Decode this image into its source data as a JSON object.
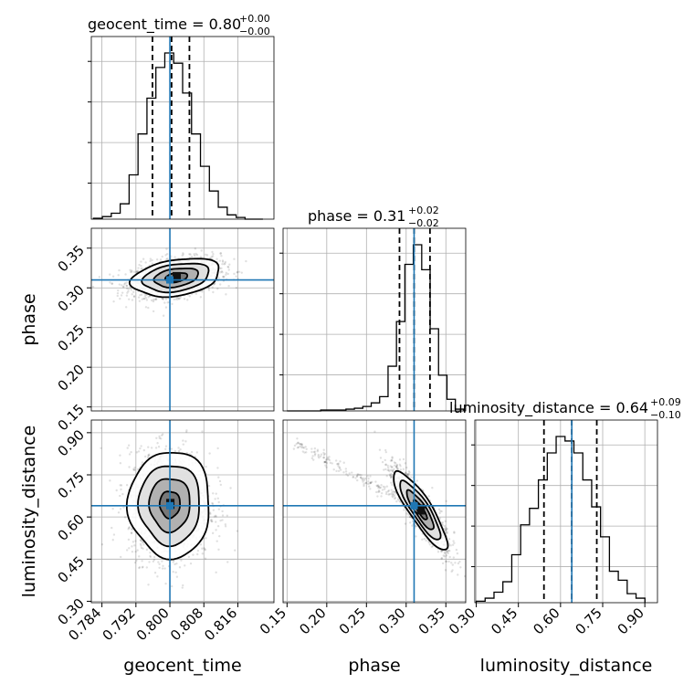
{
  "chart_data": {
    "type": "corner",
    "parameters": [
      "geocent_time",
      "phase",
      "luminosity_distance"
    ],
    "truths": {
      "geocent_time": 0.8,
      "phase": 0.31,
      "luminosity_distance": 0.64
    },
    "truth_color": "#1f77b4",
    "titles": [
      {
        "param": "geocent_time",
        "text": "geocent_time = 0.80",
        "sup": "+0.00",
        "sub": "−0.00"
      },
      {
        "param": "phase",
        "text": "phase = 0.31",
        "sup": "+0.02",
        "sub": "−0.02"
      },
      {
        "param": "luminosity_distance",
        "text": "luminosity_distance = 0.64",
        "sup": "+0.09",
        "sub": "−0.10"
      }
    ],
    "axes": {
      "geocent_time": {
        "label": "geocent_time",
        "lim": [
          0.7815,
          0.8245
        ],
        "ticks": [
          0.784,
          0.792,
          0.8,
          0.808,
          0.816
        ],
        "tick_labels": [
          "0.784",
          "0.792",
          "0.800",
          "0.808",
          "0.816"
        ]
      },
      "phase": {
        "label": "phase",
        "lim": [
          0.145,
          0.375
        ],
        "ticks": [
          0.15,
          0.2,
          0.25,
          0.3,
          0.35
        ],
        "tick_labels": [
          "0.15",
          "0.20",
          "0.25",
          "0.30",
          "0.35"
        ]
      },
      "luminosity_distance": {
        "label": "luminosity_distance",
        "lim": [
          0.295,
          0.945
        ],
        "ticks": [
          0.3,
          0.45,
          0.6,
          0.75,
          0.9
        ],
        "tick_labels": [
          "0.30",
          "0.45",
          "0.60",
          "0.75",
          "0.90"
        ]
      }
    },
    "histograms": {
      "geocent_time": {
        "edges": [
          0.782,
          0.7841,
          0.7862,
          0.7883,
          0.7904,
          0.7925,
          0.7946,
          0.7967,
          0.7988,
          0.8009,
          0.803,
          0.8051,
          0.8072,
          0.8093,
          0.8114,
          0.8135,
          0.8156,
          0.8177,
          0.8198,
          0.8219
        ],
        "counts": [
          1,
          3,
          7,
          18,
          52,
          100,
          142,
          178,
          195,
          183,
          148,
          100,
          62,
          33,
          14,
          5,
          2,
          0,
          0
        ]
      },
      "phase": {
        "edges": [
          0.15,
          0.1606,
          0.1712,
          0.1818,
          0.1924,
          0.203,
          0.2136,
          0.2242,
          0.2348,
          0.2454,
          0.256,
          0.2666,
          0.2772,
          0.2878,
          0.2984,
          0.309,
          0.3196,
          0.3302,
          0.3408,
          0.3514,
          0.362,
          0.3726
        ],
        "counts": [
          0,
          0,
          0,
          0,
          1,
          1,
          1,
          2,
          3,
          5,
          9,
          16,
          50,
          100,
          164,
          186,
          158,
          92,
          40,
          13,
          2
        ]
      },
      "luminosity_distance": {
        "edges": [
          0.3,
          0.3316,
          0.3632,
          0.3948,
          0.4264,
          0.458,
          0.4896,
          0.5212,
          0.5528,
          0.5844,
          0.616,
          0.6476,
          0.6792,
          0.7108,
          0.7424,
          0.774,
          0.8056,
          0.8372,
          0.8688,
          0.9004
        ],
        "counts": [
          1,
          3,
          7,
          14,
          32,
          52,
          63,
          82,
          100,
          111,
          108,
          100,
          82,
          64,
          44,
          21,
          15,
          6,
          3
        ]
      }
    },
    "quantiles": {
      "geocent_time": [
        0.7959,
        0.8004,
        0.8046
      ],
      "phase": [
        0.2916,
        0.31,
        0.33
      ],
      "luminosity_distance": [
        0.541,
        0.64,
        0.729
      ]
    },
    "pairs": [
      {
        "x": "geocent_time",
        "y": "phase",
        "center": [
          0.8015,
          0.313
        ],
        "spread": [
          0.0052,
          0.012
        ],
        "rho": 0.3
      },
      {
        "x": "geocent_time",
        "y": "luminosity_distance",
        "center": [
          0.8,
          0.645
        ],
        "spread": [
          0.0048,
          0.095
        ],
        "rho": 0.0
      },
      {
        "x": "phase",
        "y": "luminosity_distance",
        "center": [
          0.318,
          0.625
        ],
        "spread": [
          0.017,
          0.07
        ],
        "rho": -0.87
      }
    ],
    "grid": true
  }
}
